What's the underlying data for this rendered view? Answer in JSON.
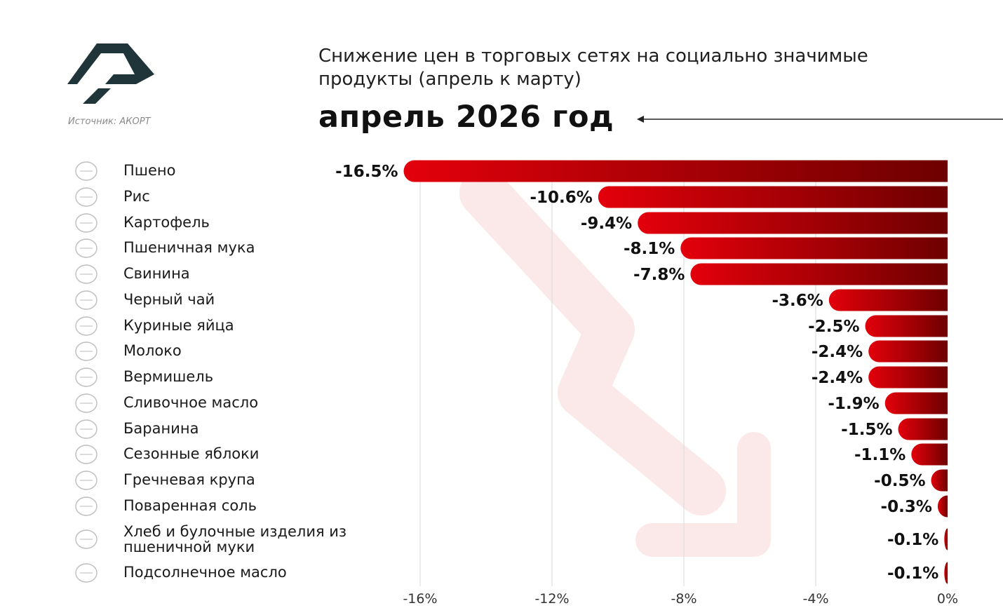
{
  "header": {
    "source": "Источник: АКОРТ",
    "title": "Снижение цен в торговых сетях на социально значимые продукты (апрель к марту)",
    "subtitle": "апрель 2026 год"
  },
  "colors": {
    "bar_dark": "#6e0000",
    "bar_light": "#e3000b",
    "logo": "#1f3539",
    "grid": "#d9d9d9",
    "watermark_arrow": "#fbe9e9"
  },
  "chart_data": {
    "type": "bar",
    "orientation": "horizontal",
    "categories": [
      "Пшено",
      "Рис",
      "Картофель",
      "Пшеничная мука",
      "Свинина",
      "Черный чай",
      "Куриные яйца",
      "Молоко",
      "Вермишель",
      "Сливочное масло",
      "Баранина",
      "Сезонные яблоки",
      "Гречневая крупа",
      "Поваренная соль",
      "Хлеб и булочные изделия из пшеничной муки",
      "Подсолнечное масло"
    ],
    "values": [
      -16.5,
      -10.6,
      -9.4,
      -8.1,
      -7.8,
      -3.6,
      -2.5,
      -2.4,
      -2.4,
      -1.9,
      -1.5,
      -1.1,
      -0.5,
      -0.3,
      -0.1,
      -0.1
    ],
    "data_labels": [
      "-16.5%",
      "-10.6%",
      "-9.4%",
      "-8.1%",
      "-7.8%",
      "-3.6%",
      "-2.5%",
      "-2.4%",
      "-2.4%",
      "-1.9%",
      "-1.5%",
      "-1.1%",
      "-0.5%",
      "-0.3%",
      "-0.1%",
      "-0.1%"
    ],
    "xticks": [
      -16,
      -12,
      -8,
      -4,
      0
    ],
    "xtick_labels": [
      "-16%",
      "-12%",
      "-8%",
      "-4%",
      "0%"
    ],
    "xlim": [
      -16.5,
      0
    ],
    "grid": true,
    "icons": [
      "wheat-icon",
      "rice-bowl-icon",
      "potato-icon",
      "flour-bag-icon",
      "meat-icon",
      "tea-cup-icon",
      "eggs-icon",
      "milk-bottle-icon",
      "noodles-icon",
      "butter-icon",
      "sheep-icon",
      "apple-icon",
      "buckwheat-icon",
      "salt-shaker-icon",
      "bread-icon",
      "oil-bottle-icon"
    ]
  }
}
